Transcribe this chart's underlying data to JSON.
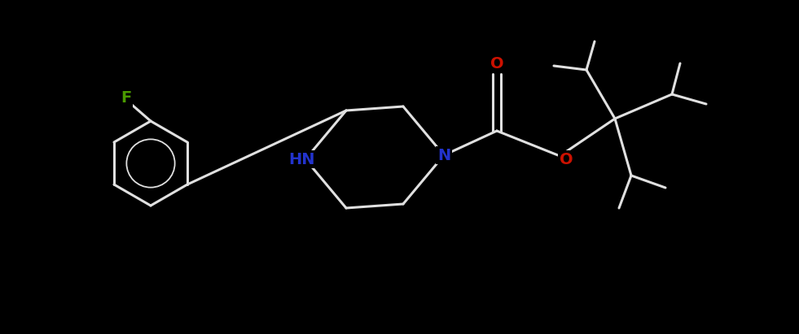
{
  "bg_color": "#000000",
  "bond_color": "#e0e0e0",
  "atom_colors": {
    "F": "#4a9a00",
    "O": "#cc1100",
    "N": "#2233cc",
    "C": "#e0e0e0"
  },
  "lw": 2.2
}
